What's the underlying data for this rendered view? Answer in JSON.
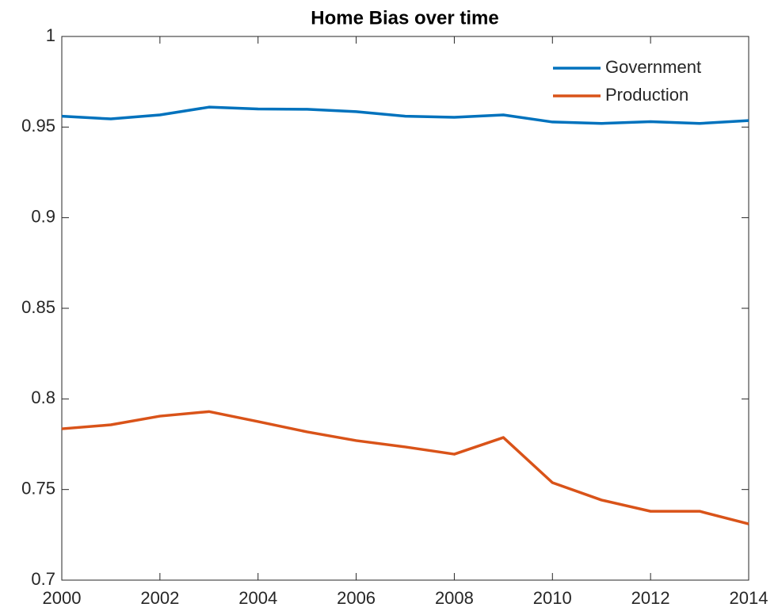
{
  "chart_data": {
    "type": "line",
    "title": "Home Bias over time",
    "x": [
      2000,
      2001,
      2002,
      2003,
      2004,
      2005,
      2006,
      2007,
      2008,
      2009,
      2010,
      2011,
      2012,
      2013,
      2014
    ],
    "series": [
      {
        "name": "Government",
        "color": "#0072bd",
        "values": [
          0.956,
          0.9545,
          0.9567,
          0.961,
          0.96,
          0.9598,
          0.9585,
          0.956,
          0.9554,
          0.9567,
          0.9528,
          0.952,
          0.953,
          0.952,
          0.9536
        ]
      },
      {
        "name": "Production",
        "color": "#d95319",
        "values": [
          0.7835,
          0.7857,
          0.7905,
          0.793,
          0.7875,
          0.7818,
          0.777,
          0.7735,
          0.7695,
          0.7787,
          0.7538,
          0.7442,
          0.738,
          0.738,
          0.731
        ]
      }
    ],
    "xlim": [
      2000,
      2014
    ],
    "xticks": [
      2000,
      2002,
      2004,
      2006,
      2008,
      2010,
      2012,
      2014
    ],
    "ylim": [
      0.7,
      1
    ],
    "yticks": [
      0.7,
      0.75,
      0.8,
      0.85,
      0.9,
      0.95,
      1
    ],
    "legend": "top-right",
    "grid": false
  }
}
